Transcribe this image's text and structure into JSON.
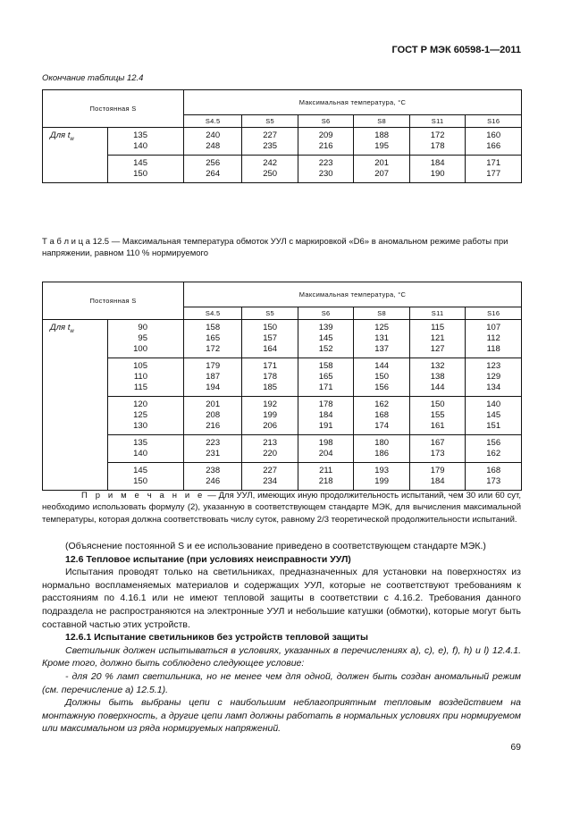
{
  "header": {
    "doc_id": "ГОСТ Р МЭК 60598-1—2011"
  },
  "table1": {
    "caption": "Окончание таблицы 12.4",
    "row_header": "Постоянная S",
    "col_group": "Максимальная температура, °С",
    "columns": [
      "S4.5",
      "S5",
      "S6",
      "S8",
      "S11",
      "S16"
    ],
    "row_label": "Для t",
    "row_label_sub": "w",
    "groups": [
      {
        "keys": "135\n140",
        "cols": [
          "240\n248",
          "227\n235",
          "209\n216",
          "188\n195",
          "172\n178",
          "160\n166"
        ]
      },
      {
        "keys": "145\n150",
        "cols": [
          "256\n264",
          "242\n250",
          "223\n230",
          "201\n207",
          "184\n190",
          "171\n177"
        ]
      }
    ]
  },
  "table2": {
    "caption": "Т а б л и ц а  12.5 — Максимальная температура обмоток УУЛ с маркировкой «D6» в аномальном режиме работы при напряжении, равном 110 % нормируемого",
    "row_header": "Постоянная S",
    "col_group": "Максимальная температура, °С",
    "columns": [
      "S4.5",
      "S5",
      "S6",
      "S8",
      "S11",
      "S16"
    ],
    "row_label": "Для t",
    "row_label_sub": "w",
    "groups": [
      {
        "keys": "90\n95\n100",
        "cols": [
          "158\n165\n172",
          "150\n157\n164",
          "139\n145\n152",
          "125\n131\n137",
          "115\n121\n127",
          "107\n112\n118"
        ]
      },
      {
        "keys": "105\n110\n115",
        "cols": [
          "179\n187\n194",
          "171\n178\n185",
          "158\n165\n171",
          "144\n150\n156",
          "132\n138\n144",
          "123\n129\n134"
        ]
      },
      {
        "keys": "120\n125\n130",
        "cols": [
          "201\n208\n216",
          "192\n199\n206",
          "178\n184\n191",
          "162\n168\n174",
          "150\n155\n161",
          "140\n145\n151"
        ]
      },
      {
        "keys": "135\n140",
        "cols": [
          "223\n231",
          "213\n220",
          "198\n204",
          "180\n186",
          "167\n173",
          "156\n162"
        ]
      },
      {
        "keys": "145\n150",
        "cols": [
          "238\n246",
          "227\n234",
          "211\n218",
          "193\n199",
          "179\n184",
          "168\n173"
        ]
      }
    ]
  },
  "note": {
    "label": "П р и м е ч а н и е",
    "text": " — Для УУЛ, имеющих иную продолжительность испытаний, чем 30 или 60 сут, необходимо использовать формулу (2), указанную в соответствующем стандарте МЭК, для вычисления максимальной температуры, которая должна соответствовать числу суток, равному 2/3 теоретической продолжительности испытаний."
  },
  "body": {
    "p1": "(Объяснение постоянной S и ее использование приведено в соответствующем стандарте МЭК.)",
    "h1": "12.6 Тепловое испытание (при условиях неисправности УУЛ)",
    "p2": "Испытания проводят только на светильниках, предназначенных для установки на поверхностях из нормально воспламеняемых материалов и содержащих УУЛ, которые не соответствуют требованиям к расстояниям по 4.16.1 или не имеют тепловой защиты в соответствии с 4.16.2. Требования данного подраздела не распространяются на электронные УУЛ и небольшие катушки (обмотки), которые могут быть составной частью этих устройств.",
    "h2": "12.6.1 Испытание светильников без устройств тепловой защиты",
    "p3": "Светильник должен испытываться в условиях, указанных в перечислениях a), c), e), f), h) и l) 12.4.1. Кроме того, должно быть соблюдено следующее условие:",
    "p4": "- для 20 % ламп светильника, но не менее чем для одной, должен быть создан аномальный режим (см. перечисление a) 12.5.1).",
    "p5": "Должны быть выбраны цепи с наибольшим неблагоприятным тепловым воздействием на монтажную поверхность, а другие цепи ламп должны работать в нормальных условиях при нормируемом или максимальном из ряда нормируемых напряжений."
  },
  "page_number": "69"
}
